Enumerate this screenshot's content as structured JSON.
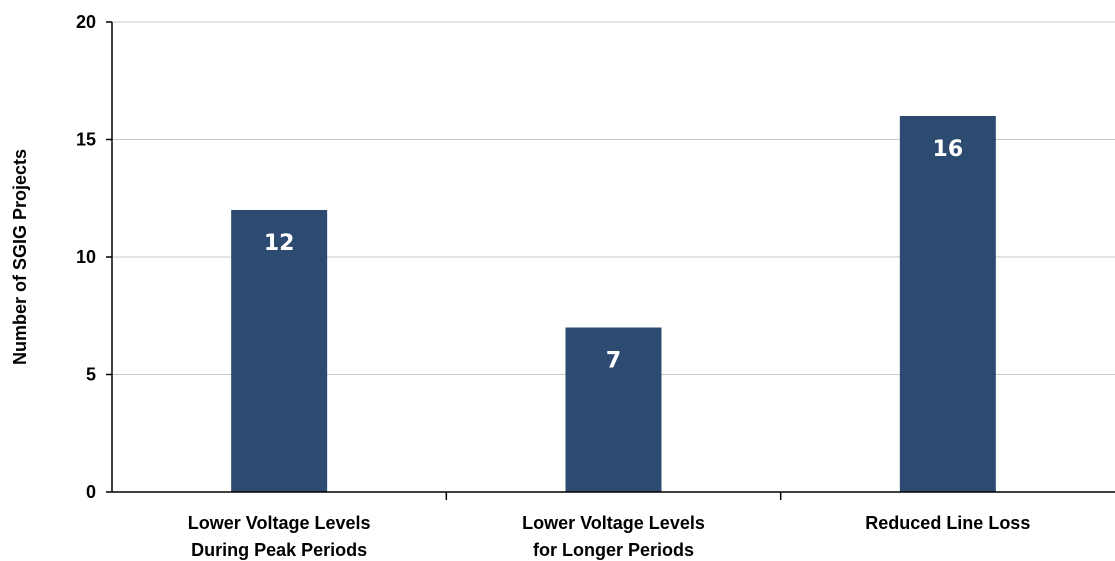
{
  "chart_data": {
    "type": "bar",
    "categories": [
      [
        "Lower Voltage Levels",
        "During Peak Periods"
      ],
      [
        "Lower Voltage Levels",
        "for Longer Periods"
      ],
      [
        "Reduced Line Loss"
      ]
    ],
    "values": [
      12,
      7,
      16
    ],
    "data_labels": [
      "12",
      "7",
      "16"
    ],
    "title": "",
    "xlabel": "",
    "ylabel": "Number of SGIG Projects",
    "ylim": [
      0,
      20
    ],
    "yticks": [
      0,
      5,
      10,
      15,
      20
    ],
    "grid": true,
    "legend": "none",
    "colors": {
      "bar": "#2d4a70",
      "grid": "#c8c8c8",
      "axis": "#000000"
    }
  }
}
